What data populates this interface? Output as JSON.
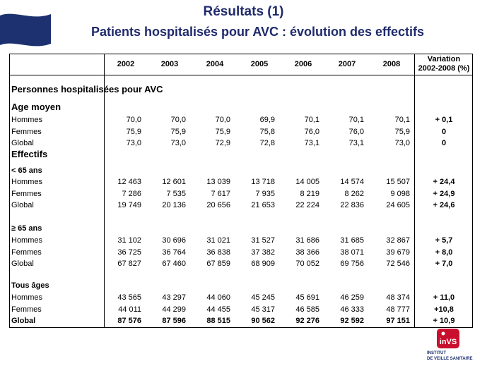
{
  "header": {
    "title": "Résultats (1)",
    "subtitle": "Patients hospitalisés pour AVC : évolution des effectifs"
  },
  "table": {
    "years": [
      "2002",
      "2003",
      "2004",
      "2005",
      "2006",
      "2007",
      "2008"
    ],
    "variation_header_line1": "Variation",
    "variation_header_line2": "2002-2008 (%)",
    "section_title": "Personnes hospitalisées pour AVC",
    "age_section": "Age moyen",
    "age_rows": [
      {
        "label": "Hommes",
        "values": [
          "70,0",
          "70,0",
          "70,0",
          "69,9",
          "70,1",
          "70,1",
          "70,1"
        ],
        "variation": "+ 0,1"
      },
      {
        "label": "Femmes",
        "values": [
          "75,9",
          "75,9",
          "75,9",
          "75,8",
          "76,0",
          "76,0",
          "75,9"
        ],
        "variation": "0"
      },
      {
        "label": "Global",
        "values": [
          "73,0",
          "73,0",
          "72,9",
          "72,8",
          "73,1",
          "73,1",
          "73,0"
        ],
        "variation": "0"
      }
    ],
    "effectifs_section": "Effectifs",
    "lt65_label": "< 65 ans",
    "lt65_rows": [
      {
        "label": "Hommes",
        "values": [
          "12 463",
          "12 601",
          "13 039",
          "13 718",
          "14 005",
          "14 574",
          "15 507"
        ],
        "variation": "+ 24,4"
      },
      {
        "label": "Femmes",
        "values": [
          "7 286",
          "7 535",
          "7 617",
          "7 935",
          "8 219",
          "8 262",
          "9 098"
        ],
        "variation": "+ 24,9"
      },
      {
        "label": "Global",
        "values": [
          "19 749",
          "20 136",
          "20 656",
          "21 653",
          "22 224",
          "22 836",
          "24 605"
        ],
        "variation": "+ 24,6"
      }
    ],
    "ge65_label": "≥ 65 ans",
    "ge65_rows": [
      {
        "label": "Hommes",
        "values": [
          "31 102",
          "30 696",
          "31 021",
          "31 527",
          "31 686",
          "31 685",
          "32 867"
        ],
        "variation": "+ 5,7"
      },
      {
        "label": "Femmes",
        "values": [
          "36 725",
          "36 764",
          "36 838",
          "37 382",
          "38 366",
          "38 071",
          "39 679"
        ],
        "variation": "+ 8,0"
      },
      {
        "label": "Global",
        "values": [
          "67 827",
          "67 460",
          "67 859",
          "68 909",
          "70 052",
          "69 756",
          "72 546"
        ],
        "variation": "+ 7,0"
      }
    ],
    "all_label": "Tous âges",
    "all_rows": [
      {
        "label": "Hommes",
        "values": [
          "43 565",
          "43 297",
          "44 060",
          "45 245",
          "45 691",
          "46 259",
          "48 374"
        ],
        "variation": "+ 11,0"
      },
      {
        "label": "Femmes",
        "values": [
          "44 011",
          "44 299",
          "44 455",
          "45 317",
          "46 585",
          "46 333",
          "48 777"
        ],
        "variation": "+10,8"
      },
      {
        "label": "Global",
        "values": [
          "87 576",
          "87 596",
          "88 515",
          "90 562",
          "92 276",
          "92 592",
          "97 151"
        ],
        "variation": "+ 10,9"
      }
    ]
  },
  "logo": {
    "mark": "inVS",
    "line1": "INSTITUT",
    "line2": "DE VEILLE SANITAIRE"
  },
  "colors": {
    "title": "#1f2a6b",
    "flag": "#1d3170",
    "logo_red": "#c8102e"
  }
}
